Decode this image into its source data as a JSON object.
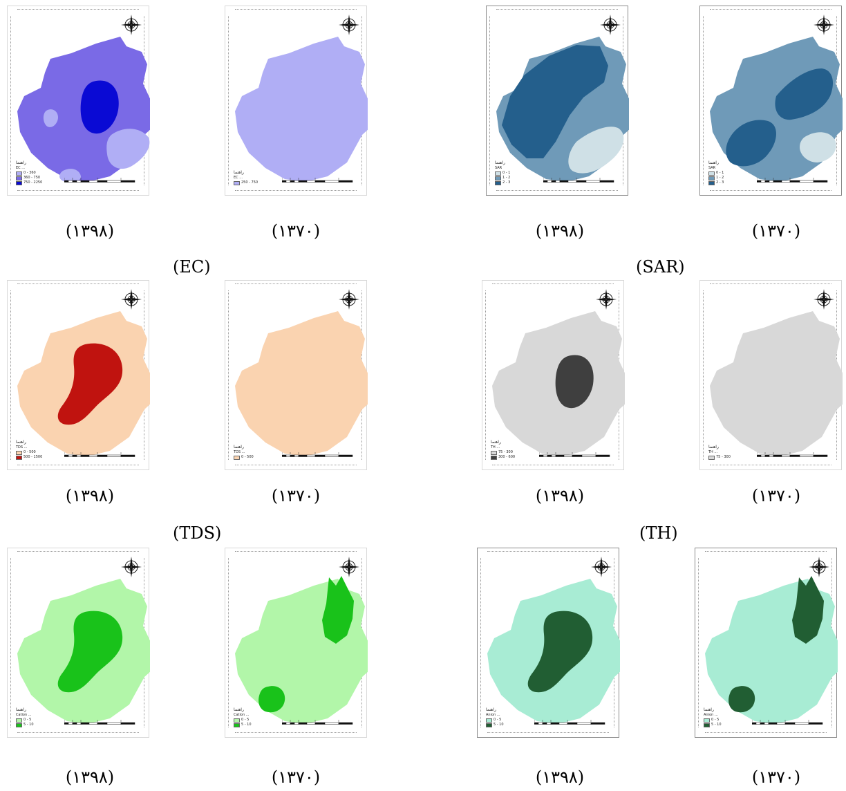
{
  "years": {
    "y1398": "(۱۳۹۸)",
    "y1370": "(۱۳۷۰)"
  },
  "parameters": [
    "(EC)",
    "(SAR)",
    "(TDS)",
    "(TH)"
  ],
  "legend_title": "راهنما",
  "colors": {
    "ec_light": "#b0aef5",
    "ec_mid": "#7a6ae6",
    "ec_dark": "#0a0ad4",
    "sar_light": "#cfe0e6",
    "sar_mid": "#6f9ab8",
    "sar_dark": "#245f8c",
    "tds_light": "#fad3b0",
    "tds_dark": "#c0130f",
    "th_light": "#d8d8d8",
    "th_dark": "#3f3f3f",
    "ca_light": "#b2f6a9",
    "ca_dark": "#19c21a",
    "an_light": "#a8ecd4",
    "an_dark": "#215e33"
  },
  "maps": [
    {
      "id": "ec-1398",
      "param": "EC",
      "year": "1398",
      "legend_label": "EC ...",
      "legend": [
        "0 - 360",
        "360 - 750",
        "750 - 2250"
      ],
      "colors": [
        "ec_light",
        "ec_mid",
        "ec_dark"
      ]
    },
    {
      "id": "ec-1370",
      "param": "EC",
      "year": "1370",
      "legend_label": "EC ...",
      "legend": [
        "250 - 750"
      ],
      "colors": [
        "ec_light"
      ]
    },
    {
      "id": "sar-1398",
      "param": "SAR",
      "year": "1398",
      "legend_label": "SAR",
      "legend": [
        "0 - 1",
        "1 - 2",
        "2 - 3"
      ],
      "colors": [
        "sar_light",
        "sar_mid",
        "sar_dark"
      ]
    },
    {
      "id": "sar-1370",
      "param": "SAR",
      "year": "1370",
      "legend_label": "SAR",
      "legend": [
        "0 - 1",
        "1 - 2",
        "2 - 3"
      ],
      "colors": [
        "sar_light",
        "sar_mid",
        "sar_dark"
      ]
    },
    {
      "id": "tds-1398",
      "param": "TDS",
      "year": "1398",
      "legend_label": "TDS ...",
      "legend": [
        "0 - 500",
        "500 - 1500"
      ],
      "colors": [
        "tds_light",
        "tds_dark"
      ]
    },
    {
      "id": "tds-1370",
      "param": "TDS",
      "year": "1370",
      "legend_label": "TDS ...",
      "legend": [
        "0 - 500"
      ],
      "colors": [
        "tds_light"
      ]
    },
    {
      "id": "th-1398",
      "param": "TH",
      "year": "1398",
      "legend_label": "TH ...",
      "legend": [
        "75 - 300",
        "300 - 600"
      ],
      "colors": [
        "th_light",
        "th_dark"
      ]
    },
    {
      "id": "th-1370",
      "param": "TH",
      "year": "1370",
      "legend_label": "TH ...",
      "legend": [
        "75 - 300"
      ],
      "colors": [
        "th_light"
      ]
    },
    {
      "id": "ca-1398",
      "param": "Cation",
      "year": "1398",
      "legend_label": "Cation ...",
      "legend": [
        "0 - 5",
        "5 - 10"
      ],
      "colors": [
        "ca_light",
        "ca_dark"
      ]
    },
    {
      "id": "ca-1370",
      "param": "Cation",
      "year": "1370",
      "legend_label": "Cation ...",
      "legend": [
        "0 - 5",
        "5 - 10"
      ],
      "colors": [
        "ca_light",
        "ca_dark"
      ]
    },
    {
      "id": "an-1398",
      "param": "Anion",
      "year": "1398",
      "legend_label": "Anion ...",
      "legend": [
        "0 - 5",
        "5 - 10"
      ],
      "colors": [
        "an_light",
        "an_dark"
      ]
    },
    {
      "id": "an-1370",
      "param": "Anion",
      "year": "1370",
      "legend_label": "Anion ...",
      "legend": [
        "0 - 5",
        "5 - 10"
      ],
      "colors": [
        "an_light",
        "an_dark"
      ]
    }
  ]
}
